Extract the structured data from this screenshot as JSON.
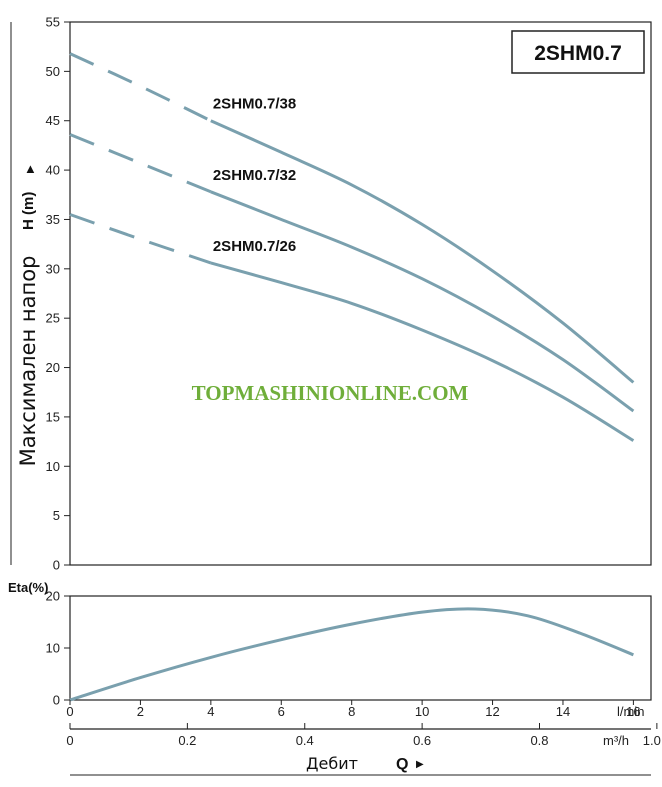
{
  "chart_data": [
    {
      "type": "line",
      "title": "2SHM0.7",
      "ylabel": "Максимален напор",
      "yunit": "H (m)",
      "ylim": [
        0,
        55
      ],
      "yticks": [
        0,
        5,
        10,
        15,
        20,
        25,
        30,
        35,
        40,
        45,
        50,
        55
      ],
      "xlim": [
        0,
        16.5
      ],
      "grid": false,
      "series": [
        {
          "name": "2SHM0.7/38",
          "dashed_until_x": 4,
          "x": [
            0,
            2,
            4,
            6,
            8,
            10,
            12,
            14,
            16
          ],
          "y": [
            51.8,
            48.5,
            45,
            41.8,
            38.5,
            34.5,
            29.8,
            24.5,
            18.5
          ]
        },
        {
          "name": "2SHM0.7/32",
          "dashed_until_x": 4,
          "x": [
            0,
            2,
            4,
            6,
            8,
            10,
            12,
            14,
            16
          ],
          "y": [
            43.6,
            40.7,
            37.8,
            35,
            32.2,
            29,
            25.2,
            20.8,
            15.6
          ]
        },
        {
          "name": "2SHM0.7/26",
          "dashed_until_x": 4,
          "x": [
            0,
            2,
            4,
            6,
            8,
            10,
            12,
            14,
            16
          ],
          "y": [
            35.5,
            33,
            30.6,
            28.6,
            26.5,
            23.8,
            20.7,
            17,
            12.6
          ]
        }
      ]
    },
    {
      "type": "line",
      "ylabel": "Eta(%)",
      "ylim": [
        0,
        20
      ],
      "yticks": [
        0,
        10,
        20
      ],
      "xlim": [
        0,
        16.5
      ],
      "xlabel": "Дебит",
      "xsymbol": "Q",
      "x_primary": {
        "unit": "l/min",
        "ticks": [
          0,
          2,
          4,
          6,
          8,
          10,
          12,
          14,
          16
        ]
      },
      "x_secondary": {
        "unit": "m³/h",
        "ticks": [
          "0",
          "0.2",
          "0.4",
          "0.6",
          "0.8",
          "1.0"
        ]
      },
      "grid": false,
      "series": [
        {
          "x": [
            0,
            2,
            4,
            6,
            8,
            10,
            11.5,
            13,
            14.5,
            16
          ],
          "y": [
            0,
            4.3,
            8.2,
            11.6,
            14.6,
            16.9,
            17.5,
            16.2,
            12.8,
            8.7
          ]
        }
      ]
    }
  ],
  "watermark": "TOPMASHINIONLINE.COM",
  "colors": {
    "curve": "#7aa0ae",
    "watermark": "#6fae3a"
  }
}
